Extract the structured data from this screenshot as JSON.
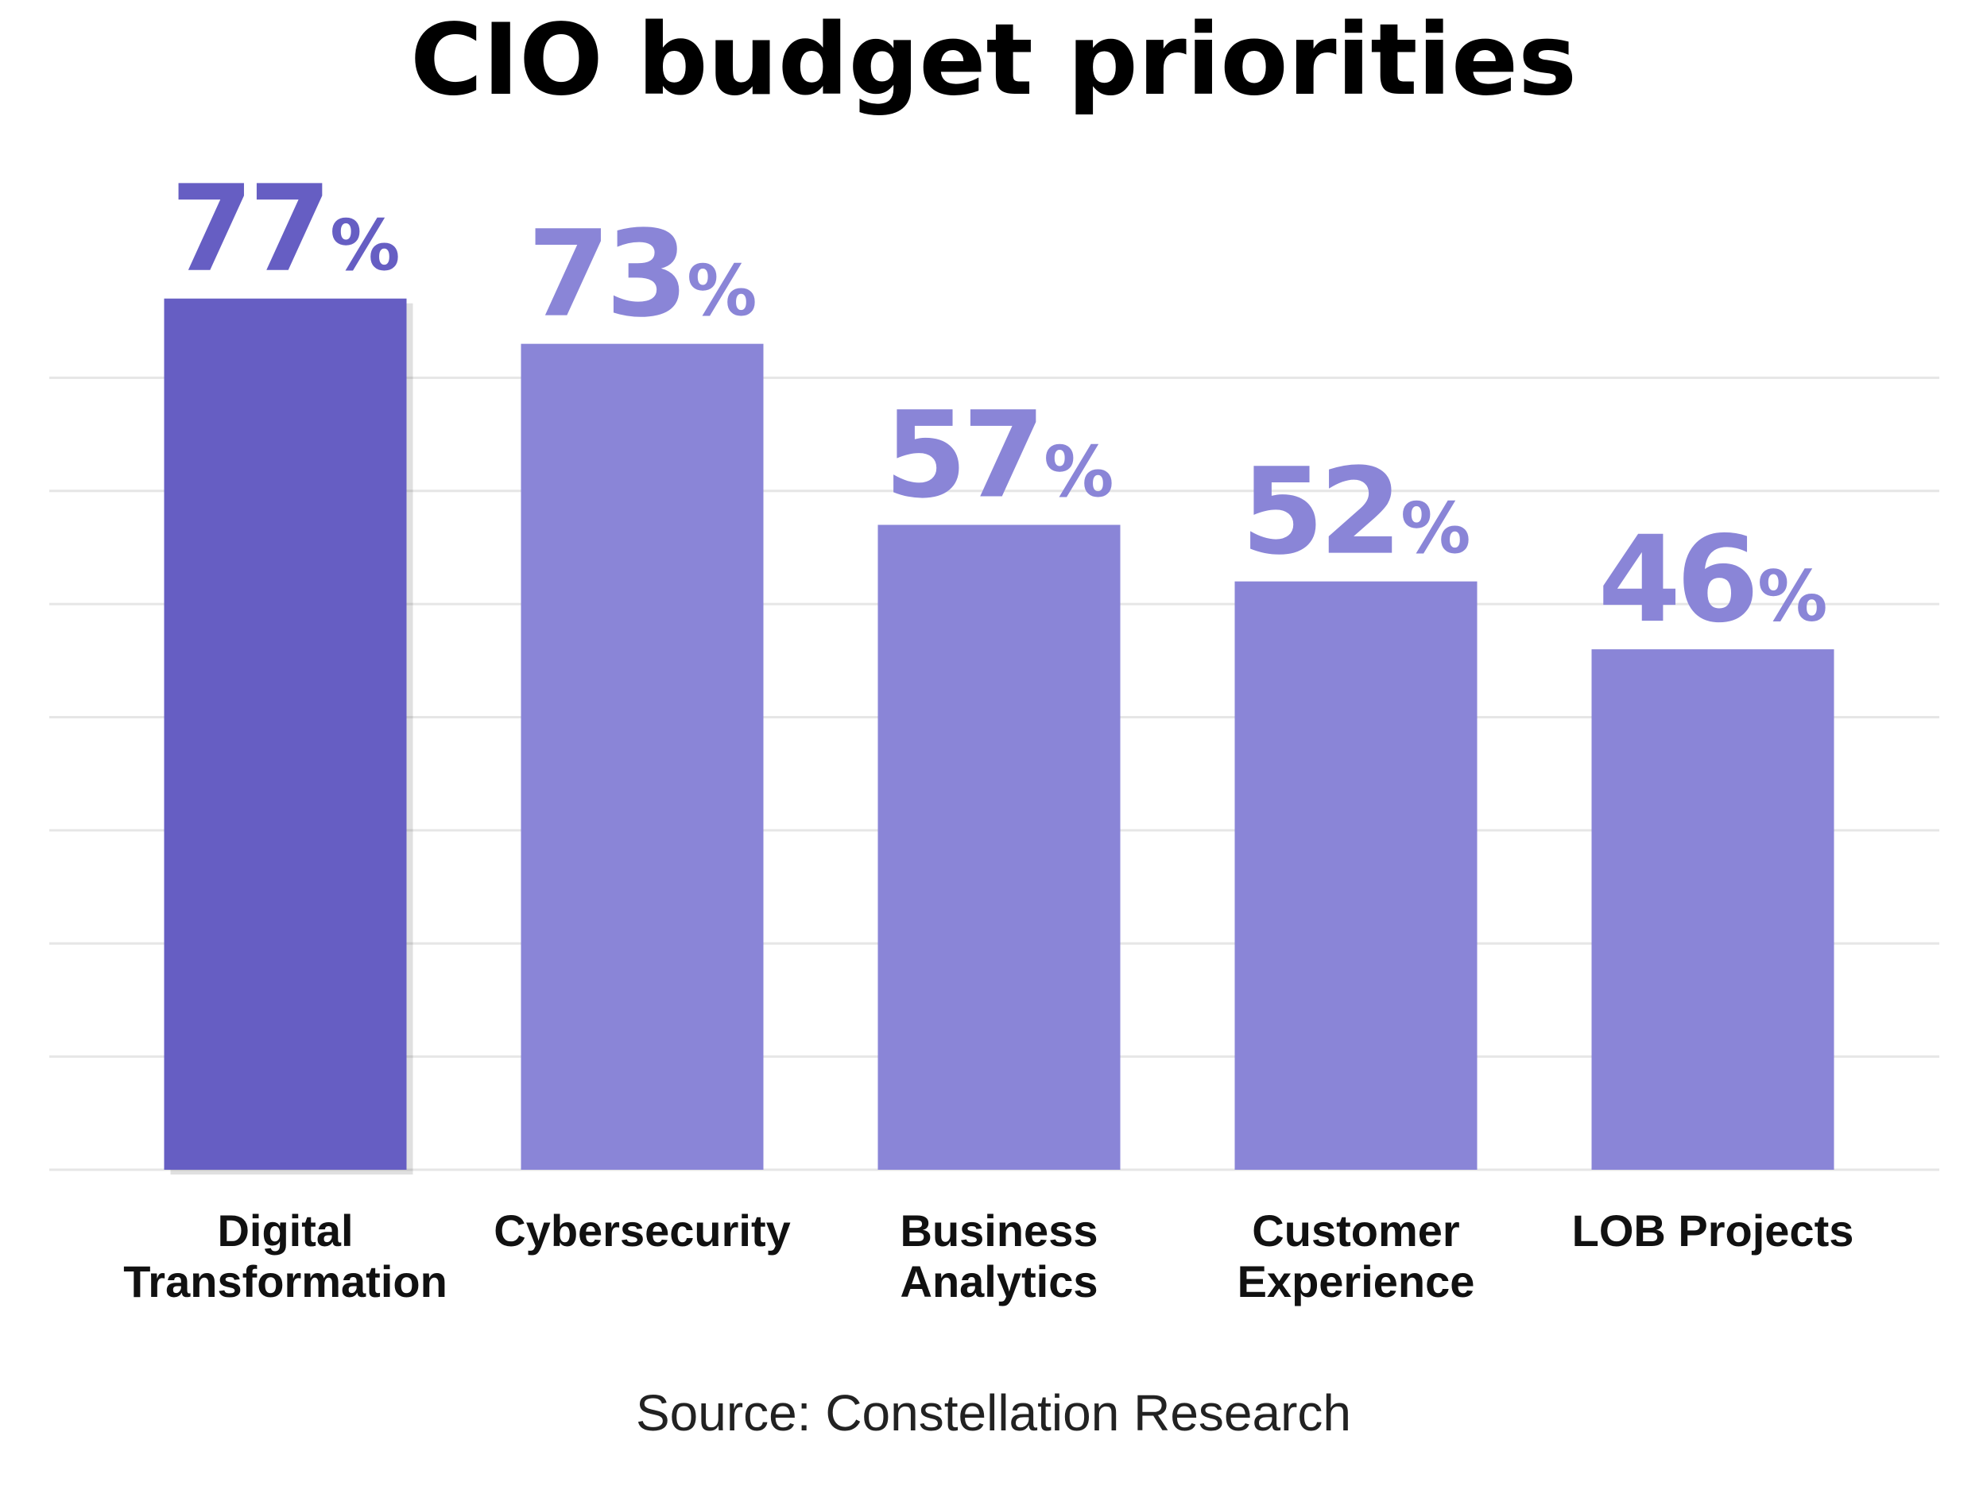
{
  "chart_data": {
    "type": "bar",
    "title": "CIO budget priorities",
    "categories": [
      [
        "Digital",
        "Transformation"
      ],
      [
        "Cybersecurity"
      ],
      [
        "Business",
        "Analytics"
      ],
      [
        "Customer",
        "Experience"
      ],
      [
        "LOB Projects"
      ]
    ],
    "values": [
      77,
      73,
      57,
      52,
      46
    ],
    "value_suffix": "%",
    "highlight_index": 0,
    "ylim": [
      0,
      80
    ],
    "grid": true,
    "legend": "none",
    "colors": {
      "highlight": "#665EC3",
      "bar": "#8A85D7",
      "grid": "#E6E6E6"
    }
  },
  "source": "Source: Constellation Research"
}
